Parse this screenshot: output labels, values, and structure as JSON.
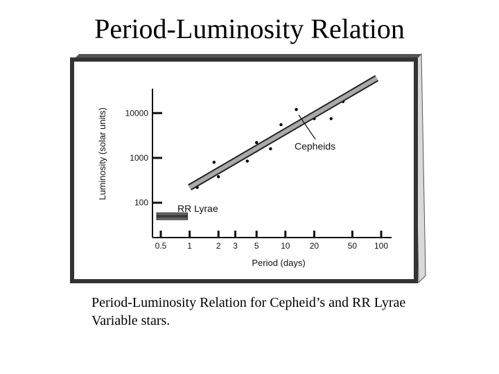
{
  "slide": {
    "title": "Period-Luminosity Relation",
    "caption": "Period-Luminosity Relation for Cepheid’s and RR Lyrae Variable stars."
  },
  "chart_data": {
    "type": "scatter",
    "title": "",
    "xlabel": "Period (days)",
    "ylabel": "Luminosity (solar units)",
    "x_scale": "log",
    "y_scale": "log",
    "xlim": [
      0.5,
      100
    ],
    "ylim": [
      20,
      50000
    ],
    "x_ticks": [
      0.5,
      1,
      2,
      3,
      5,
      10,
      20,
      50,
      100
    ],
    "x_tick_labels": [
      "0.5",
      "1",
      "2",
      "3",
      "5",
      "10",
      "20",
      "50",
      "100"
    ],
    "y_ticks": [
      100,
      1000,
      10000
    ],
    "y_tick_labels": [
      "100",
      "1000",
      "10000"
    ],
    "grid": false,
    "series": [
      {
        "name": "Cepheids",
        "kind": "points",
        "points": [
          {
            "x": 1.2,
            "y": 220
          },
          {
            "x": 1.3,
            "y": 330
          },
          {
            "x": 1.6,
            "y": 390
          },
          {
            "x": 1.8,
            "y": 800
          },
          {
            "x": 2.0,
            "y": 380
          },
          {
            "x": 2.5,
            "y": 650
          },
          {
            "x": 3.0,
            "y": 950
          },
          {
            "x": 4.0,
            "y": 850
          },
          {
            "x": 5.0,
            "y": 2200
          },
          {
            "x": 7.0,
            "y": 1600
          },
          {
            "x": 9.0,
            "y": 5500
          },
          {
            "x": 10.0,
            "y": 3500
          },
          {
            "x": 12.0,
            "y": 4500
          },
          {
            "x": 13.0,
            "y": 12000
          },
          {
            "x": 15.0,
            "y": 6000
          },
          {
            "x": 20.0,
            "y": 7500
          },
          {
            "x": 30.0,
            "y": 7500
          },
          {
            "x": 40.0,
            "y": 18000
          }
        ]
      },
      {
        "name": "Cepheids",
        "kind": "trend_band",
        "from": {
          "x": 1.0,
          "y": 220
        },
        "to": {
          "x": 90.0,
          "y": 60000
        }
      },
      {
        "name": "RR Lyrae",
        "kind": "range_band",
        "x_from": 0.5,
        "x_to": 0.95,
        "y": 50
      }
    ],
    "annotations": [
      "Cepheids",
      "RR Lyrae"
    ]
  },
  "colors": {
    "frame_shadow": "#3a3a3a",
    "frame_side": "#d9d9d9",
    "band_fill": "#a9a9a9",
    "points": "#000000"
  }
}
